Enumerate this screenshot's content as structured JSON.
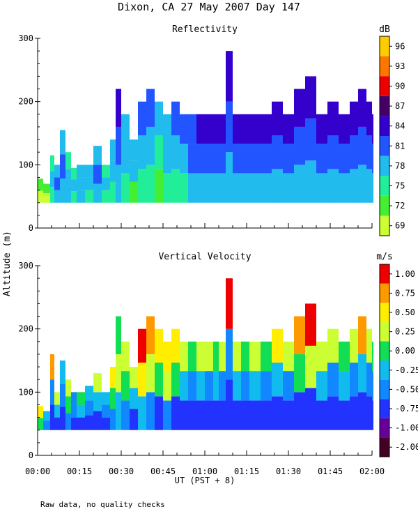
{
  "title": "Dixon, CA 27 May 2007  Day 147",
  "footnote": "Raw data, no quality checks",
  "ylabel": "Altitude (m)",
  "xlabel": "UT  (PST + 8)",
  "x_ticks": [
    "00:00",
    "00:15",
    "00:30",
    "00:45",
    "01:00",
    "01:15",
    "01:30",
    "01:45",
    "02:00"
  ],
  "chart_data": [
    {
      "type": "heatmap",
      "title": "Reflectivity",
      "ylim": [
        0,
        300
      ],
      "y_ticks": [
        0,
        100,
        200,
        300
      ],
      "xlim": [
        "00:00",
        "02:00"
      ],
      "colorbar": {
        "unit": "dB",
        "tick_labels": [
          "69",
          "72",
          "75",
          "78",
          "81",
          "84",
          "87",
          "90",
          "93",
          "96"
        ],
        "colors": [
          "#ccff33",
          "#44ee33",
          "#22ee99",
          "#22bbee",
          "#2255ff",
          "#3300cc",
          "#440066",
          "#ee0000",
          "#ff7700",
          "#ffcc00"
        ]
      },
      "profiles": [
        {
          "t": 0.0,
          "top": 78,
          "v": [
            0,
            1
          ]
        },
        {
          "t": 2.0,
          "top": 70,
          "v": [
            0,
            1
          ]
        },
        {
          "t": 4.5,
          "top": 115,
          "v": [
            2,
            3,
            2
          ]
        },
        {
          "t": 6.0,
          "top": 100,
          "v": [
            3,
            4,
            3
          ]
        },
        {
          "t": 8.0,
          "top": 155,
          "v": [
            3,
            4,
            3
          ]
        },
        {
          "t": 10.0,
          "top": 120,
          "v": [
            3,
            3,
            2
          ]
        },
        {
          "t": 12.0,
          "top": 95,
          "v": [
            2,
            3,
            2
          ]
        },
        {
          "t": 14.0,
          "top": 100,
          "v": [
            3,
            3,
            3
          ]
        },
        {
          "t": 17.0,
          "top": 100,
          "v": [
            2,
            3,
            3
          ]
        },
        {
          "t": 20.0,
          "top": 130,
          "v": [
            3,
            4,
            3
          ]
        },
        {
          "t": 23.0,
          "top": 100,
          "v": [
            2,
            3,
            2
          ]
        },
        {
          "t": 26.0,
          "top": 140,
          "v": [
            2,
            3,
            3
          ]
        },
        {
          "t": 28.0,
          "top": 220,
          "v": [
            3,
            4,
            5
          ]
        },
        {
          "t": 30.0,
          "top": 180,
          "v": [
            2,
            3,
            3
          ]
        },
        {
          "t": 33.0,
          "top": 140,
          "v": [
            1,
            3,
            3
          ]
        },
        {
          "t": 36.0,
          "top": 200,
          "v": [
            2,
            3,
            4
          ]
        },
        {
          "t": 39.0,
          "top": 220,
          "v": [
            2,
            3,
            4
          ]
        },
        {
          "t": 42.0,
          "top": 200,
          "v": [
            1,
            2,
            3
          ]
        },
        {
          "t": 45.0,
          "top": 180,
          "v": [
            2,
            3,
            3
          ]
        },
        {
          "t": 48.0,
          "top": 200,
          "v": [
            2,
            3,
            4
          ]
        },
        {
          "t": 51.0,
          "top": 180,
          "v": [
            2,
            3,
            4
          ]
        },
        {
          "t": 54.0,
          "top": 180,
          "v": [
            3,
            4,
            4
          ]
        },
        {
          "t": 57.0,
          "top": 180,
          "v": [
            3,
            4,
            5
          ]
        },
        {
          "t": 60.0,
          "top": 180,
          "v": [
            3,
            4,
            5
          ]
        },
        {
          "t": 63.0,
          "top": 180,
          "v": [
            3,
            4,
            5
          ]
        },
        {
          "t": 65.0,
          "top": 180,
          "v": [
            3,
            4,
            5
          ]
        },
        {
          "t": 67.5,
          "top": 280,
          "v": [
            3,
            4,
            5
          ]
        },
        {
          "t": 70.0,
          "top": 180,
          "v": [
            3,
            4,
            5
          ]
        },
        {
          "t": 73.0,
          "top": 180,
          "v": [
            3,
            4,
            5
          ]
        },
        {
          "t": 76.0,
          "top": 180,
          "v": [
            3,
            4,
            5
          ]
        },
        {
          "t": 80.0,
          "top": 180,
          "v": [
            3,
            4,
            5
          ]
        },
        {
          "t": 84.0,
          "top": 200,
          "v": [
            3,
            4,
            5
          ]
        },
        {
          "t": 88.0,
          "top": 180,
          "v": [
            3,
            4,
            5
          ]
        },
        {
          "t": 92.0,
          "top": 220,
          "v": [
            3,
            4,
            5
          ]
        },
        {
          "t": 96.0,
          "top": 240,
          "v": [
            3,
            4,
            5
          ]
        },
        {
          "t": 100.0,
          "top": 180,
          "v": [
            3,
            4,
            5
          ]
        },
        {
          "t": 104.0,
          "top": 200,
          "v": [
            3,
            4,
            5
          ]
        },
        {
          "t": 108.0,
          "top": 180,
          "v": [
            3,
            4,
            5
          ]
        },
        {
          "t": 112.0,
          "top": 200,
          "v": [
            3,
            4,
            5
          ]
        },
        {
          "t": 115.0,
          "top": 220,
          "v": [
            3,
            4,
            5
          ]
        },
        {
          "t": 118.0,
          "top": 200,
          "v": [
            3,
            4,
            5
          ]
        },
        {
          "t": 120.0,
          "top": 180,
          "v": [
            3,
            4,
            5
          ]
        }
      ]
    },
    {
      "type": "heatmap",
      "title": "Vertical Velocity",
      "ylim": [
        0,
        300
      ],
      "y_ticks": [
        0,
        100,
        200,
        300
      ],
      "xlim": [
        "00:00",
        "02:00"
      ],
      "colorbar": {
        "unit": "m/s",
        "tick_labels": [
          "-2.00",
          "-1.00",
          "-0.75",
          "-0.50",
          "-0.25",
          "0.00",
          "0.25",
          "0.50",
          "0.75",
          "1.00"
        ],
        "colors": [
          "#440022",
          "#660099",
          "#2233ff",
          "#1188ff",
          "#11bbee",
          "#11dd55",
          "#ccff33",
          "#ffee00",
          "#ff9900",
          "#ee0000"
        ]
      },
      "profiles": [
        {
          "t": 0.0,
          "top": 78,
          "v": [
            5,
            7
          ]
        },
        {
          "t": 2.0,
          "top": 70,
          "v": [
            3,
            4
          ]
        },
        {
          "t": 4.5,
          "top": 160,
          "v": [
            2,
            3,
            8
          ]
        },
        {
          "t": 6.0,
          "top": 100,
          "v": [
            2,
            4,
            6
          ]
        },
        {
          "t": 8.0,
          "top": 150,
          "v": [
            2,
            3,
            4
          ]
        },
        {
          "t": 10.0,
          "top": 120,
          "v": [
            3,
            5,
            6
          ]
        },
        {
          "t": 12.0,
          "top": 100,
          "v": [
            2,
            3,
            3
          ]
        },
        {
          "t": 14.0,
          "top": 100,
          "v": [
            2,
            4,
            5
          ]
        },
        {
          "t": 17.0,
          "top": 110,
          "v": [
            2,
            3,
            4
          ]
        },
        {
          "t": 20.0,
          "top": 130,
          "v": [
            2,
            4,
            6
          ]
        },
        {
          "t": 23.0,
          "top": 100,
          "v": [
            2,
            3,
            4
          ]
        },
        {
          "t": 26.0,
          "top": 140,
          "v": [
            3,
            5,
            7
          ]
        },
        {
          "t": 28.0,
          "top": 220,
          "v": [
            4,
            6,
            5
          ]
        },
        {
          "t": 30.0,
          "top": 180,
          "v": [
            3,
            5,
            6
          ]
        },
        {
          "t": 33.0,
          "top": 140,
          "v": [
            2,
            4,
            6
          ]
        },
        {
          "t": 36.0,
          "top": 200,
          "v": [
            4,
            7,
            9
          ]
        },
        {
          "t": 39.0,
          "top": 220,
          "v": [
            3,
            6,
            8
          ]
        },
        {
          "t": 42.0,
          "top": 200,
          "v": [
            2,
            5,
            7
          ]
        },
        {
          "t": 45.0,
          "top": 180,
          "v": [
            3,
            6,
            7
          ]
        },
        {
          "t": 48.0,
          "top": 200,
          "v": [
            2,
            5,
            7
          ]
        },
        {
          "t": 51.0,
          "top": 180,
          "v": [
            2,
            4,
            6
          ]
        },
        {
          "t": 54.0,
          "top": 180,
          "v": [
            2,
            3,
            5
          ]
        },
        {
          "t": 57.0,
          "top": 180,
          "v": [
            2,
            4,
            6
          ]
        },
        {
          "t": 60.0,
          "top": 180,
          "v": [
            2,
            3,
            6
          ]
        },
        {
          "t": 63.0,
          "top": 180,
          "v": [
            2,
            4,
            5
          ]
        },
        {
          "t": 65.0,
          "top": 180,
          "v": [
            2,
            3,
            6
          ]
        },
        {
          "t": 67.5,
          "top": 280,
          "v": [
            2,
            3,
            9
          ]
        },
        {
          "t": 70.0,
          "top": 180,
          "v": [
            2,
            4,
            6
          ]
        },
        {
          "t": 73.0,
          "top": 180,
          "v": [
            2,
            3,
            5
          ]
        },
        {
          "t": 76.0,
          "top": 180,
          "v": [
            2,
            4,
            6
          ]
        },
        {
          "t": 80.0,
          "top": 180,
          "v": [
            2,
            3,
            5
          ]
        },
        {
          "t": 84.0,
          "top": 200,
          "v": [
            2,
            4,
            7
          ]
        },
        {
          "t": 88.0,
          "top": 180,
          "v": [
            2,
            3,
            6
          ]
        },
        {
          "t": 92.0,
          "top": 220,
          "v": [
            2,
            5,
            8
          ]
        },
        {
          "t": 96.0,
          "top": 240,
          "v": [
            2,
            6,
            9
          ]
        },
        {
          "t": 100.0,
          "top": 180,
          "v": [
            2,
            4,
            6
          ]
        },
        {
          "t": 104.0,
          "top": 200,
          "v": [
            2,
            3,
            6
          ]
        },
        {
          "t": 108.0,
          "top": 180,
          "v": [
            2,
            4,
            5
          ]
        },
        {
          "t": 112.0,
          "top": 200,
          "v": [
            2,
            3,
            6
          ]
        },
        {
          "t": 115.0,
          "top": 220,
          "v": [
            2,
            4,
            8
          ]
        },
        {
          "t": 118.0,
          "top": 200,
          "v": [
            2,
            3,
            6
          ]
        },
        {
          "t": 120.0,
          "top": 180,
          "v": [
            2,
            3,
            5
          ]
        }
      ]
    }
  ]
}
